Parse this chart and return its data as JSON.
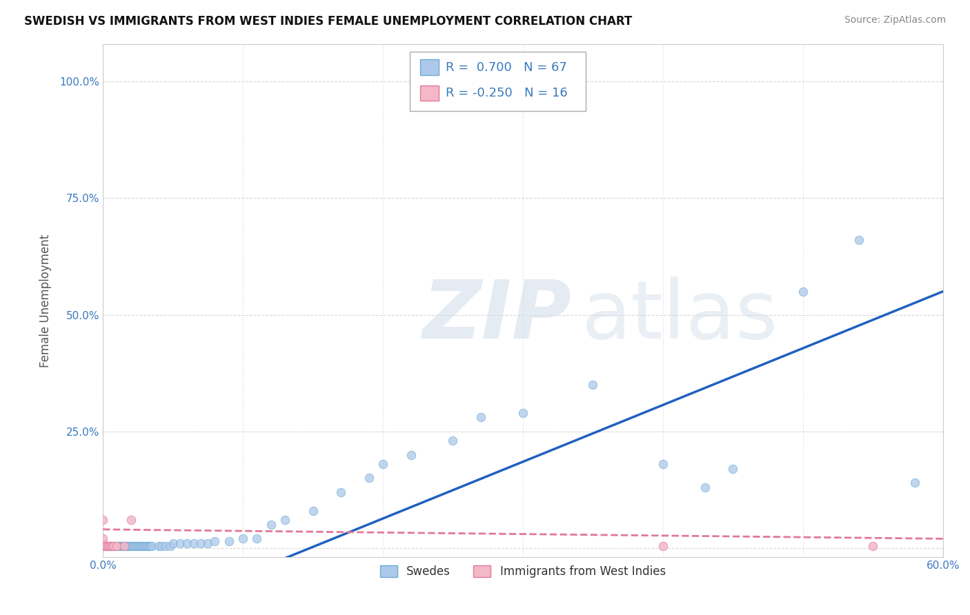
{
  "title": "SWEDISH VS IMMIGRANTS FROM WEST INDIES FEMALE UNEMPLOYMENT CORRELATION CHART",
  "source": "Source: ZipAtlas.com",
  "ylabel": "Female Unemployment",
  "xlim": [
    0.0,
    0.6
  ],
  "ylim": [
    -0.02,
    1.08
  ],
  "xticks": [
    0.0,
    0.1,
    0.2,
    0.3,
    0.4,
    0.5,
    0.6
  ],
  "xticklabels": [
    "0.0%",
    "",
    "",
    "",
    "",
    "",
    "60.0%"
  ],
  "yticks": [
    0.0,
    0.25,
    0.5,
    0.75,
    1.0
  ],
  "yticklabels": [
    "",
    "25.0%",
    "50.0%",
    "75.0%",
    "100.0%"
  ],
  "blue_color": "#adc8ea",
  "blue_edge": "#6aaad4",
  "pink_color": "#f4b8c8",
  "pink_edge": "#e07898",
  "trend_blue": "#2060c0",
  "trend_pink": "#e07898",
  "R_blue": 0.7,
  "N_blue": 67,
  "R_pink": -0.25,
  "N_pink": 16,
  "legend1_label_blue": "Swedes",
  "legend1_label_pink": "Immigrants from West Indies",
  "watermark_zip": "ZIP",
  "watermark_atlas": "atlas",
  "blue_x": [
    0.0,
    0.001,
    0.002,
    0.003,
    0.004,
    0.005,
    0.006,
    0.007,
    0.008,
    0.009,
    0.01,
    0.011,
    0.012,
    0.013,
    0.014,
    0.015,
    0.016,
    0.017,
    0.018,
    0.019,
    0.02,
    0.021,
    0.022,
    0.023,
    0.024,
    0.025,
    0.026,
    0.027,
    0.028,
    0.029,
    0.03,
    0.031,
    0.032,
    0.033,
    0.034,
    0.035,
    0.04,
    0.042,
    0.045,
    0.048,
    0.05,
    0.055,
    0.06,
    0.065,
    0.07,
    0.075,
    0.08,
    0.09,
    0.1,
    0.11,
    0.12,
    0.13,
    0.15,
    0.17,
    0.19,
    0.2,
    0.22,
    0.25,
    0.27,
    0.3,
    0.35,
    0.4,
    0.43,
    0.45,
    0.5,
    0.54,
    0.58
  ],
  "blue_y": [
    0.005,
    0.005,
    0.005,
    0.005,
    0.005,
    0.005,
    0.005,
    0.005,
    0.005,
    0.005,
    0.005,
    0.005,
    0.005,
    0.005,
    0.005,
    0.005,
    0.005,
    0.005,
    0.005,
    0.005,
    0.005,
    0.005,
    0.005,
    0.005,
    0.005,
    0.005,
    0.005,
    0.005,
    0.005,
    0.005,
    0.005,
    0.005,
    0.005,
    0.005,
    0.005,
    0.005,
    0.005,
    0.005,
    0.005,
    0.005,
    0.01,
    0.01,
    0.01,
    0.01,
    0.01,
    0.01,
    0.015,
    0.015,
    0.02,
    0.02,
    0.05,
    0.06,
    0.08,
    0.12,
    0.15,
    0.18,
    0.2,
    0.23,
    0.28,
    0.29,
    0.35,
    0.18,
    0.13,
    0.17,
    0.55,
    0.66,
    0.14
  ],
  "pink_x": [
    0.0,
    0.0,
    0.0,
    0.001,
    0.002,
    0.003,
    0.004,
    0.005,
    0.006,
    0.007,
    0.008,
    0.01,
    0.015,
    0.02,
    0.4,
    0.55
  ],
  "pink_y": [
    0.01,
    0.02,
    0.06,
    0.005,
    0.005,
    0.005,
    0.005,
    0.005,
    0.005,
    0.005,
    0.005,
    0.005,
    0.005,
    0.06,
    0.005,
    0.005
  ],
  "background": "#ffffff",
  "grid_color": "#d8d8d8"
}
